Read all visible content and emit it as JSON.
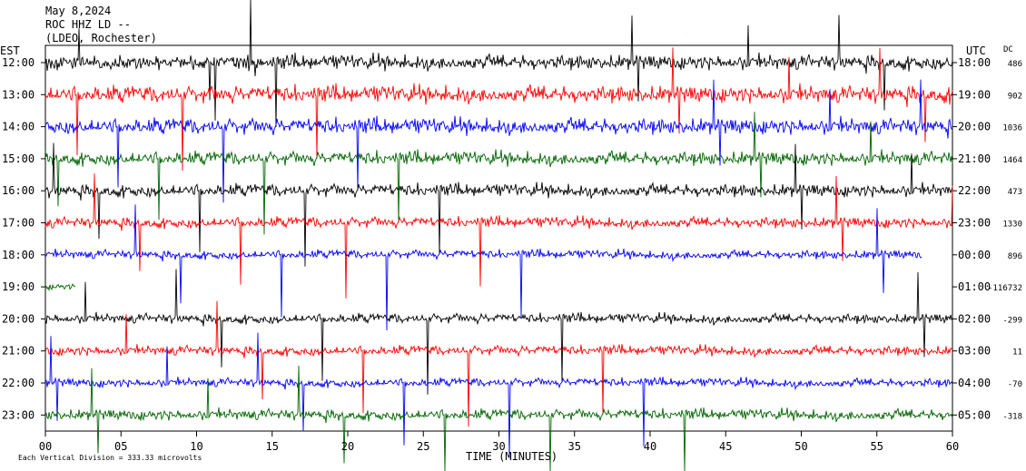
{
  "header": {
    "date": "May 8,2024",
    "station": "ROC HHZ LD --",
    "location": "(LDEO, Rochester)"
  },
  "chart_data": {
    "type": "line",
    "title": "",
    "left_axis_title": "EST",
    "right_axis_title": "UTC",
    "dc_title": "DC",
    "xlabel": "TIME (MINUTES)",
    "xlim": [
      0,
      60
    ],
    "x_ticks": [
      "00",
      "05",
      "10",
      "15",
      "20",
      "25",
      "30",
      "35",
      "40",
      "45",
      "50",
      "55",
      "60"
    ],
    "footnote": "Each Vertical Division =  333.33 microvolts",
    "trace_colors": [
      "#000000",
      "#ff0000",
      "#0000ff",
      "#006400"
    ],
    "rows": [
      {
        "est": "12:00",
        "utc": "18:00",
        "dc": "486",
        "color": "#000000",
        "end_minute": 60
      },
      {
        "est": "13:00",
        "utc": "19:00",
        "dc": "902",
        "color": "#ff0000",
        "end_minute": 60
      },
      {
        "est": "14:00",
        "utc": "20:00",
        "dc": "1036",
        "color": "#0000ff",
        "end_minute": 60
      },
      {
        "est": "15:00",
        "utc": "21:00",
        "dc": "1464",
        "color": "#006400",
        "end_minute": 60
      },
      {
        "est": "16:00",
        "utc": "22:00",
        "dc": "473",
        "color": "#000000",
        "end_minute": 60
      },
      {
        "est": "17:00",
        "utc": "23:00",
        "dc": "1330",
        "color": "#ff0000",
        "end_minute": 60
      },
      {
        "est": "18:00",
        "utc": "00:00",
        "dc": "896",
        "color": "#0000ff",
        "end_minute": 58
      },
      {
        "est": "19:00",
        "utc": "01:00",
        "dc": "-116732",
        "color": "#006400",
        "end_minute": 2
      },
      {
        "est": "20:00",
        "utc": "02:00",
        "dc": "-299",
        "color": "#000000",
        "end_minute": 60
      },
      {
        "est": "21:00",
        "utc": "03:00",
        "dc": "11",
        "color": "#ff0000",
        "end_minute": 60
      },
      {
        "est": "22:00",
        "utc": "04:00",
        "dc": "-70",
        "color": "#0000ff",
        "end_minute": 60
      },
      {
        "est": "23:00",
        "utc": "05:00",
        "dc": "-318",
        "color": "#006400",
        "end_minute": 60
      }
    ]
  }
}
